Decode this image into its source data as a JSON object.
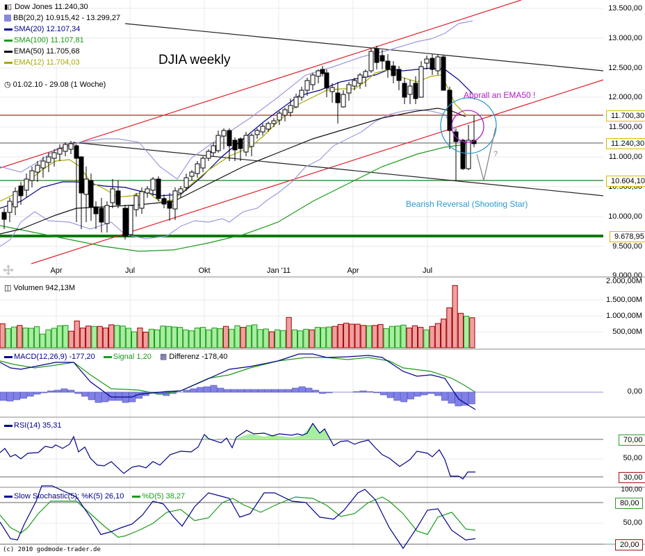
{
  "chart_title": "DJIA weekly",
  "legend": {
    "price": "Dow Jones 11.240,30",
    "bb": "BB(20,2) 10.915,42 - 13.299,27",
    "sma20": "SMA(20) 12.107,34",
    "sma100": "SMA(100) 11.107,81",
    "ema50": "EMA(50) 11.705,68",
    "ema12": "EMA(12) 11.704,03",
    "period": "01.02.10 - 29.08 (1 Woche)"
  },
  "colors": {
    "bb": "#8888dd",
    "sma20": "#00008b",
    "sma100": "#1a9a1a",
    "ema50": "#000000",
    "ema12": "#a8a800",
    "channel_red": "#e0202a",
    "support_green": "#0a7a0a",
    "vol_up_fill": "#a8eea0",
    "vol_up_border": "#1a9a1a",
    "vol_down_fill": "#f0a0a0",
    "vol_down_border": "#a00000",
    "macd": "#00008b",
    "signal": "#1a9a1a",
    "histogram": "#8080e8",
    "annotation_purple": "#b020c0",
    "annotation_blue": "#2a9ad0"
  },
  "annotations": {
    "abprall": "Abprall an EMA50 !",
    "bearish": "Bearish Reversal (Shooting Star)",
    "question": "?"
  },
  "price_axis": {
    "ticks": [
      "13.500,00",
      "13.000,00",
      "12.500,00",
      "12.000,00",
      "11.500,00",
      "11.000,00",
      "10.500,00",
      "10.000,00",
      "9.500,00",
      "9.000,00"
    ],
    "tags": [
      {
        "label": "11.700,30",
        "color": "#c8a800"
      },
      {
        "label": "11.240,30",
        "color": "#c8a800"
      },
      {
        "label": "10.604,10",
        "color": "#c8a800"
      },
      {
        "label": "9.678,95",
        "color": "#c8a800"
      }
    ]
  },
  "x_axis": {
    "labels": [
      "Apr",
      "Jul",
      "Okt",
      "Jan '11",
      "Apr",
      "Jul"
    ]
  },
  "volume": {
    "label": "Volumen 942,13M",
    "ticks": [
      "2.000,00M",
      "1.500,00M",
      "1.000,00M",
      "500,00M"
    ]
  },
  "macd": {
    "label": "MACD(12,26,9) -177,20",
    "signal_label": "Signal 1,20",
    "diff_label": "Differenz -178,40",
    "ticks": [
      "0,00"
    ]
  },
  "rsi": {
    "label": "RSI(14) 35,31",
    "ticks": [
      "50,00"
    ],
    "tags": [
      "70,00",
      "30,00"
    ]
  },
  "stoch": {
    "label": "Slow Stochastic(5): %K(5) 26,10",
    "d_label": "%D(5) 38,27",
    "ticks": [
      "100,00",
      "50,00"
    ],
    "tags": [
      "80,00",
      "20,00"
    ]
  },
  "copyright": "(c) 2010 godmode-trader.de",
  "chart_data": [
    {
      "type": "line",
      "title": "DJIA weekly",
      "x": [
        "Feb 10",
        "Apr 10",
        "Jul 10",
        "Okt 10",
        "Jan 11",
        "Apr 11",
        "Jul 11",
        "Aug 11"
      ],
      "series": [
        {
          "name": "Dow Jones (close approx)",
          "values": [
            10100,
            10900,
            9700,
            10800,
            11700,
            12700,
            12600,
            11240
          ]
        },
        {
          "name": "SMA(20)",
          "values": [
            10200,
            10600,
            10400,
            10600,
            11400,
            12300,
            12450,
            12107
          ]
        },
        {
          "name": "SMA(100)",
          "values": [
            10200,
            10000,
            9800,
            9650,
            10100,
            10800,
            11050,
            11108
          ]
        },
        {
          "name": "EMA(50)",
          "values": [
            9900,
            10300,
            10400,
            10500,
            11000,
            11600,
            11850,
            11706
          ]
        },
        {
          "name": "EMA(12)",
          "values": [
            10250,
            10700,
            10300,
            10800,
            11600,
            12400,
            12500,
            11704
          ]
        }
      ],
      "horizontal_levels": [
        11700.3,
        11240.3,
        10604.1,
        9678.95
      ],
      "ylim": [
        9000,
        13600
      ],
      "yticks": [
        9000,
        9500,
        10000,
        10500,
        11000,
        11500,
        12000,
        12500,
        13000,
        13500
      ],
      "annotations": [
        "Abprall an EMA50 !",
        "Bearish Reversal (Shooting Star)"
      ]
    },
    {
      "type": "bar",
      "title": "Volumen 942,13M",
      "ylim": [
        0,
        2000
      ],
      "yunit": "M",
      "values_approx": [
        750,
        600,
        650,
        700,
        620,
        610,
        660,
        430,
        560,
        610,
        690,
        700,
        520,
        840,
        620,
        680,
        670,
        670,
        620,
        720,
        700,
        680,
        610,
        500,
        620,
        490,
        580,
        560,
        680,
        670,
        650,
        640,
        560,
        530,
        620,
        640,
        560,
        620,
        600,
        670,
        580,
        690,
        640,
        690,
        720,
        570,
        590,
        500,
        560,
        540,
        950,
        560,
        530,
        580,
        560,
        640,
        630,
        650,
        670,
        730,
        770,
        740,
        740,
        700,
        690,
        700,
        730,
        600,
        670,
        680,
        710,
        620,
        690,
        640,
        560,
        670,
        760,
        900,
        1250,
        1950,
        1080,
        990,
        942
      ]
    },
    {
      "type": "line",
      "title": "MACD(12,26,9)",
      "series": [
        {
          "name": "MACD",
          "last": -177.2
        },
        {
          "name": "Signal",
          "last": 1.2
        },
        {
          "name": "Differenz",
          "last": -178.4
        }
      ]
    },
    {
      "type": "line",
      "title": "RSI(14)",
      "last": 35.31,
      "levels": [
        70,
        50,
        30
      ]
    },
    {
      "type": "line",
      "title": "Slow Stochastic(5)",
      "series": [
        {
          "name": "%K(5)",
          "last": 26.1
        },
        {
          "name": "%D(5)",
          "last": 38.27
        }
      ],
      "levels": [
        100,
        80,
        50,
        20
      ]
    }
  ]
}
